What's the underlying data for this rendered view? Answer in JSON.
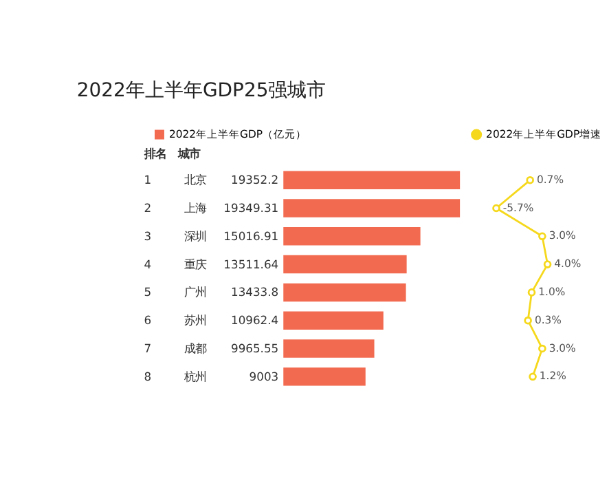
{
  "chart_data": [
    {
      "type": "bar",
      "orientation": "horizontal",
      "title": "2022年上半年GDP25强城市",
      "categories": [
        "北京",
        "上海",
        "深圳",
        "重庆",
        "广州",
        "苏州",
        "成都",
        "杭州"
      ],
      "series": [
        {
          "name": "2022年上半年GDP（亿元）",
          "type": "bar",
          "color": "#f26b50",
          "values": [
            19352.2,
            19349.31,
            15016.91,
            13511.64,
            13433.8,
            10962.4,
            9965.55,
            9003
          ]
        }
      ],
      "data_labels": true,
      "tick_labels": "y",
      "legend": "top",
      "annotations": [
        "排名",
        "城市",
        "1",
        "2",
        "3",
        "4",
        "5",
        "6",
        "7",
        "8"
      ]
    },
    {
      "type": "line",
      "orientation": "horizontal",
      "categories": [
        "北京",
        "上海",
        "深圳",
        "重庆",
        "广州",
        "苏州",
        "成都",
        "杭州"
      ],
      "series": [
        {
          "name": "2022年上半年GDP增速",
          "color": "#f5d81c",
          "values": [
            0.7,
            -5.7,
            3.0,
            4.0,
            1.0,
            0.3,
            3.0,
            1.2
          ],
          "value_labels": [
            "0.7%",
            "-5.7%",
            "3.0%",
            "4.0%",
            "1.0%",
            "0.3%",
            "3.0%",
            "1.2%"
          ]
        }
      ],
      "marker": "circle",
      "tick_labels": false,
      "legend": "top"
    }
  ]
}
